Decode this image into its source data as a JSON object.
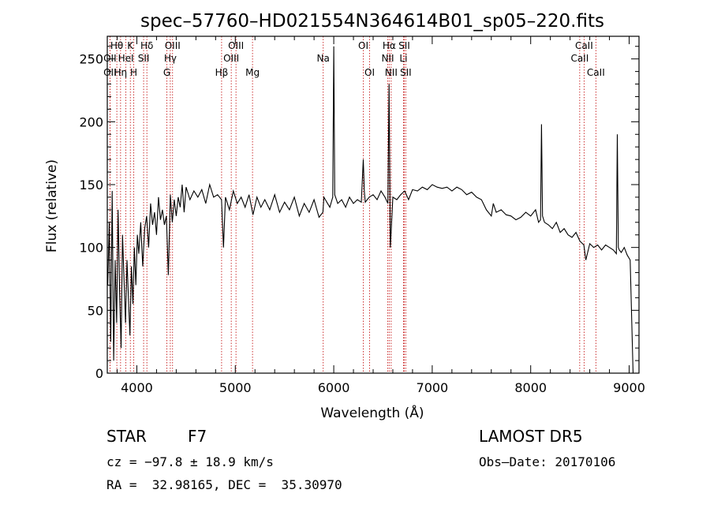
{
  "chart_data": {
    "type": "line",
    "title": "spec–57760–HD021554N364614B01_sp05–220.fits",
    "xlabel": "Wavelength (Å)",
    "ylabel": "Flux (relative)",
    "xlim": [
      3700,
      9100
    ],
    "ylim": [
      0,
      268
    ],
    "xticks": [
      4000,
      5000,
      6000,
      7000,
      8000,
      9000
    ],
    "yticks": [
      0,
      50,
      100,
      150,
      200,
      250
    ],
    "grid": false,
    "series": [
      {
        "color": "#000000",
        "x": [
          3705,
          3720,
          3735,
          3750,
          3765,
          3780,
          3795,
          3810,
          3825,
          3840,
          3855,
          3870,
          3885,
          3900,
          3915,
          3930,
          3945,
          3960,
          3975,
          3990,
          4005,
          4020,
          4040,
          4060,
          4080,
          4100,
          4120,
          4140,
          4160,
          4180,
          4200,
          4220,
          4240,
          4260,
          4280,
          4300,
          4320,
          4340,
          4360,
          4380,
          4400,
          4420,
          4440,
          4460,
          4480,
          4500,
          4540,
          4580,
          4620,
          4660,
          4700,
          4740,
          4780,
          4820,
          4860,
          4880,
          4900,
          4940,
          4980,
          5020,
          5060,
          5100,
          5140,
          5180,
          5220,
          5260,
          5300,
          5350,
          5400,
          5450,
          5500,
          5550,
          5600,
          5650,
          5700,
          5750,
          5800,
          5850,
          5890,
          5900,
          5930,
          5960,
          5990,
          6000,
          6010,
          6040,
          6080,
          6120,
          6160,
          6200,
          6240,
          6280,
          6300,
          6310,
          6320,
          6360,
          6400,
          6440,
          6480,
          6520,
          6550,
          6562,
          6575,
          6600,
          6640,
          6680,
          6720,
          6760,
          6800,
          6850,
          6900,
          6950,
          7000,
          7050,
          7100,
          7150,
          7200,
          7250,
          7300,
          7350,
          7400,
          7450,
          7500,
          7550,
          7600,
          7620,
          7650,
          7700,
          7750,
          7800,
          7850,
          7900,
          7950,
          8000,
          8050,
          8080,
          8100,
          8110,
          8120,
          8140,
          8180,
          8220,
          8260,
          8300,
          8340,
          8380,
          8420,
          8460,
          8500,
          8540,
          8560,
          8600,
          8640,
          8680,
          8720,
          8760,
          8800,
          8840,
          8870,
          8880,
          8890,
          8900,
          8920,
          8950,
          8980,
          9010,
          9040
        ],
        "y": [
          70,
          120,
          25,
          145,
          10,
          90,
          40,
          130,
          65,
          20,
          110,
          75,
          40,
          90,
          60,
          30,
          85,
          55,
          100,
          70,
          110,
          95,
          120,
          85,
          115,
          125,
          100,
          135,
          118,
          128,
          110,
          140,
          122,
          130,
          118,
          125,
          78,
          142,
          120,
          138,
          125,
          140,
          132,
          150,
          128,
          148,
          138,
          145,
          140,
          146,
          135,
          150,
          140,
          142,
          138,
          100,
          140,
          130,
          145,
          135,
          140,
          132,
          142,
          126,
          140,
          132,
          138,
          130,
          142,
          128,
          136,
          130,
          140,
          125,
          135,
          128,
          138,
          124,
          128,
          140,
          136,
          132,
          140,
          260,
          142,
          135,
          138,
          132,
          140,
          135,
          138,
          136,
          170,
          145,
          136,
          140,
          142,
          138,
          145,
          140,
          135,
          230,
          100,
          140,
          138,
          142,
          145,
          138,
          146,
          145,
          148,
          146,
          150,
          148,
          147,
          148,
          145,
          148,
          146,
          142,
          144,
          140,
          138,
          130,
          125,
          135,
          128,
          130,
          126,
          125,
          122,
          124,
          128,
          125,
          130,
          120,
          122,
          198,
          125,
          120,
          118,
          115,
          120,
          112,
          115,
          110,
          108,
          112,
          105,
          102,
          90,
          103,
          100,
          102,
          98,
          102,
          100,
          98,
          95,
          190,
          100,
          98,
          96,
          100,
          94,
          90,
          0
        ]
      }
    ],
    "spectral_lines": [
      {
        "name": "Hθ",
        "x": 3797,
        "row": 1
      },
      {
        "name": "OII",
        "x": 3727,
        "row": 2
      },
      {
        "name": "OII",
        "x": 3727,
        "row": 3
      },
      {
        "name": "Hη",
        "x": 3835,
        "row": 3
      },
      {
        "name": "K",
        "x": 3934,
        "row": 1
      },
      {
        "name": "HeI",
        "x": 3889,
        "row": 2
      },
      {
        "name": "H",
        "x": 3969,
        "row": 3
      },
      {
        "name": "Hδ",
        "x": 4102,
        "row": 1
      },
      {
        "name": "SII",
        "x": 4069,
        "row": 2
      },
      {
        "name": "OIII",
        "x": 4363,
        "row": 1
      },
      {
        "name": "Hγ",
        "x": 4340,
        "row": 2
      },
      {
        "name": "G",
        "x": 4305,
        "row": 3
      },
      {
        "name": "Hβ",
        "x": 4861,
        "row": 3
      },
      {
        "name": "OIII",
        "x": 5007,
        "row": 1
      },
      {
        "name": "OIII",
        "x": 4959,
        "row": 2
      },
      {
        "name": "Mg",
        "x": 5175,
        "row": 3
      },
      {
        "name": "Na",
        "x": 5893,
        "row": 2
      },
      {
        "name": "OI",
        "x": 6300,
        "row": 1
      },
      {
        "name": "OI",
        "x": 6364,
        "row": 3
      },
      {
        "name": "Hα",
        "x": 6563,
        "row": 1
      },
      {
        "name": "NII",
        "x": 6548,
        "row": 2
      },
      {
        "name": "NII",
        "x": 6583,
        "row": 3
      },
      {
        "name": "SII",
        "x": 6716,
        "row": 1
      },
      {
        "name": "Li",
        "x": 6708,
        "row": 2
      },
      {
        "name": "SII",
        "x": 6731,
        "row": 3
      },
      {
        "name": "CaII",
        "x": 8542,
        "row": 1
      },
      {
        "name": "CaII",
        "x": 8498,
        "row": 2
      },
      {
        "name": "CaII",
        "x": 8662,
        "row": 3
      }
    ]
  },
  "info": {
    "class": "STAR",
    "subclass": "F7",
    "survey": "LAMOST DR5",
    "cz": "cz = −97.8 ± 18.9 km/s",
    "obs_date": "Obs–Date: 20170106",
    "coords": "RA =  32.98165, DEC =  35.30970"
  }
}
